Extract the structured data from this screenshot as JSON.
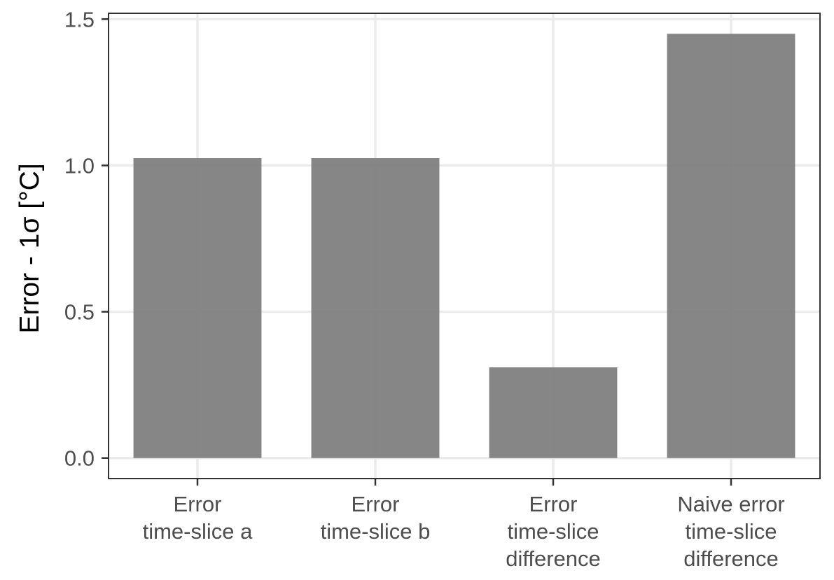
{
  "chart_data": {
    "type": "bar",
    "categories": [
      [
        "Error",
        "time-slice a"
      ],
      [
        "Error",
        "time-slice b"
      ],
      [
        "Error",
        "time-slice",
        "difference"
      ],
      [
        "Naive error",
        "time-slice",
        "difference"
      ]
    ],
    "values": [
      1.025,
      1.025,
      0.31,
      1.45
    ],
    "title": "",
    "xlabel": "",
    "ylabel": "Error - 1σ  [°C]",
    "ylim": [
      -0.07,
      1.52
    ],
    "yticks": [
      0.0,
      0.5,
      1.0,
      1.5
    ],
    "ytick_labels": [
      "0.0",
      "0.5",
      "1.0",
      "1.5"
    ],
    "grid": true,
    "legend": "none",
    "colors": {
      "bar": "#808080",
      "grid": "#ebebeb",
      "panel_border": "#333333",
      "tick_text": "#4d4d4d",
      "axis_title": "#000000"
    }
  }
}
